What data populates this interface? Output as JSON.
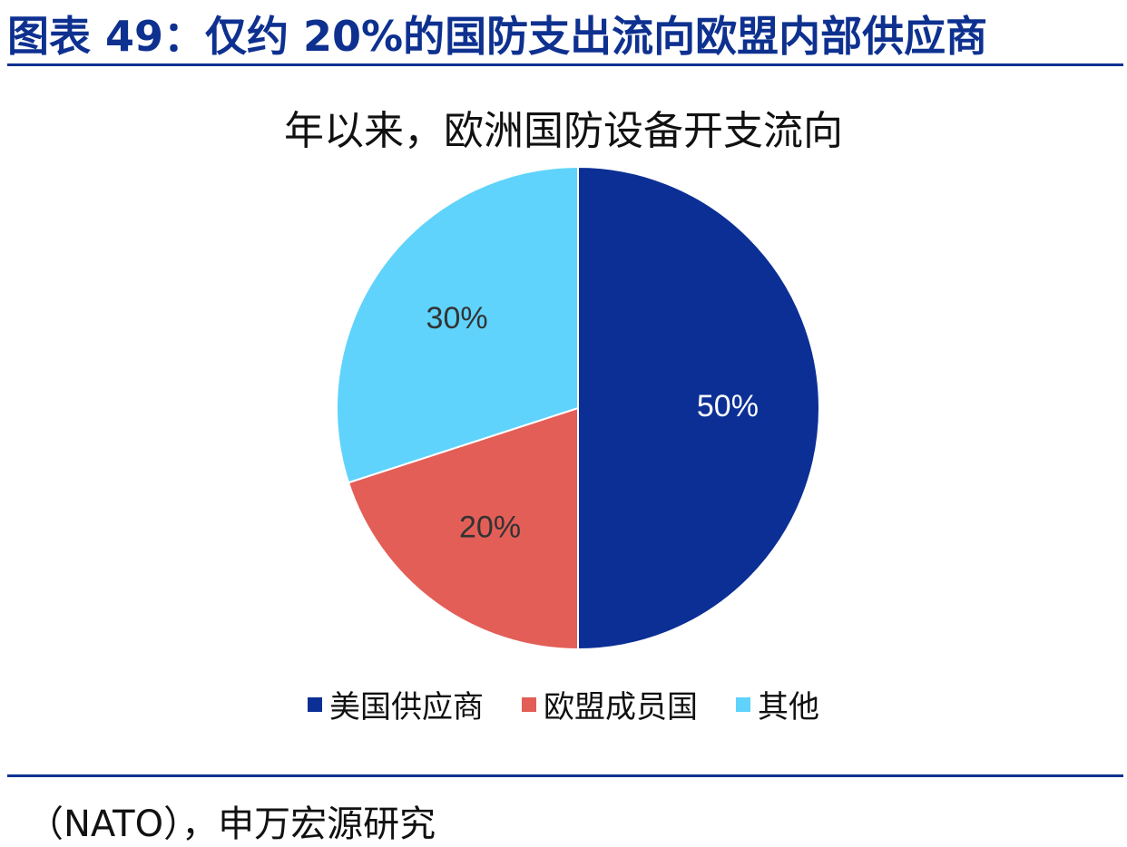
{
  "figure": {
    "title": "图表 49：仅约 20%的国防支出流向欧盟内部供应商",
    "source_blurred": "",
    "source_visible": "（NATO），申万宏源研究"
  },
  "chart_data": {
    "type": "pie",
    "title": "年以来，欧洲国防设备开支流向",
    "slices": [
      {
        "name": "美国供应商",
        "value": 50,
        "label": "50%",
        "color": "#0b2f95",
        "label_color": "#ffffff"
      },
      {
        "name": "欧盟成员国",
        "value": 20,
        "label": "20%",
        "color": "#e35e57",
        "label_color": "#333333"
      },
      {
        "name": "其他",
        "value": 30,
        "label": "30%",
        "color": "#5fd3fb",
        "label_color": "#333333"
      }
    ],
    "legend_position": "bottom",
    "start_angle": "12 o'clock, clockwise"
  }
}
